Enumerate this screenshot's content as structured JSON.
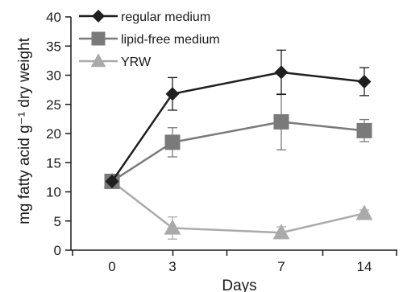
{
  "chart_data": {
    "type": "line",
    "title": "",
    "xlabel": "Days",
    "ylabel": "mg fatty acid g⁻¹ dry weight",
    "categories": [
      "0",
      "3",
      "7",
      "14"
    ],
    "ylim": [
      0,
      40
    ],
    "yticks": [
      0,
      5,
      10,
      15,
      20,
      25,
      30,
      35,
      40
    ],
    "grid": false,
    "legend_position": "top-left",
    "series": [
      {
        "name": "regular medium",
        "marker": "diamond",
        "color": "#1f1f1f",
        "values": [
          11.8,
          26.8,
          30.5,
          28.9
        ],
        "error": [
          0,
          2.8,
          3.8,
          2.4
        ]
      },
      {
        "name": "lipid-free medium",
        "marker": "square",
        "color": "#7a7a7a",
        "values": [
          11.8,
          18.5,
          22.0,
          20.5
        ],
        "error": [
          0,
          2.5,
          4.8,
          1.9
        ]
      },
      {
        "name": "YRW",
        "marker": "triangle",
        "color": "#aaaaaa",
        "values": [
          11.8,
          3.8,
          3.0,
          6.3
        ],
        "error": [
          0,
          1.9,
          1.0,
          0.6
        ]
      }
    ]
  }
}
